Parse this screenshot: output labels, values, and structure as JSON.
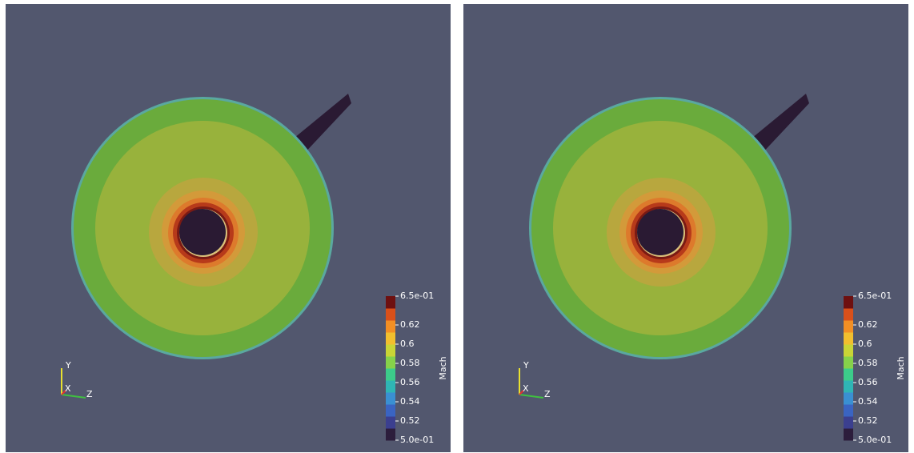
{
  "views": [
    {
      "colorbar": {
        "title": "Mach",
        "range": [
          0.5,
          0.65
        ],
        "ticks": [
          {
            "value": 0.65,
            "label": "6.5e-01"
          },
          0.62,
          0.6,
          0.58,
          0.56,
          0.54,
          0.52,
          {
            "value": 0.5,
            "label": "5.0e-01"
          }
        ],
        "colors": [
          "#2c1d3c",
          "#3b3f8f",
          "#3a64c2",
          "#3a90d2",
          "#2fb5b5",
          "#3ccc8a",
          "#86d24a",
          "#c9d536",
          "#f2bf2e",
          "#f28f24",
          "#d9501a",
          "#6e1010"
        ]
      },
      "axes": {
        "x": "X",
        "y": "Y",
        "z": "Z"
      }
    },
    {
      "colorbar": {
        "title": "Mach",
        "range": [
          0.5,
          0.65
        ],
        "ticks": [
          {
            "value": 0.65,
            "label": "6.5e-01"
          },
          0.62,
          0.6,
          0.58,
          0.56,
          0.54,
          0.52,
          {
            "value": 0.5,
            "label": "5.0e-01"
          }
        ],
        "colors": [
          "#2c1d3c",
          "#3b3f8f",
          "#3a64c2",
          "#3a90d2",
          "#2fb5b5",
          "#3ccc8a",
          "#86d24a",
          "#c9d536",
          "#f2bf2e",
          "#f28f24",
          "#d9501a",
          "#6e1010"
        ]
      },
      "axes": {
        "x": "X",
        "y": "Y",
        "z": "Z"
      }
    }
  ]
}
